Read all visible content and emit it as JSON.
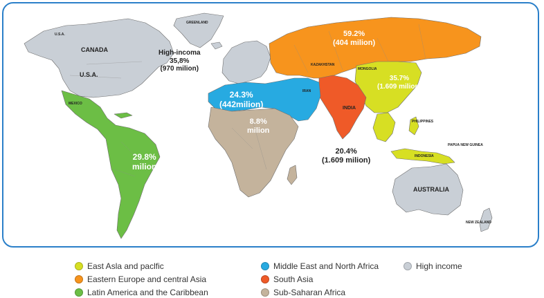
{
  "colors": {
    "east_asia_pacific": "#d7df23",
    "eastern_europe_central_asia": "#f7941d",
    "latin_america_caribbean": "#6cbe45",
    "middle_east_north_africa": "#27aae1",
    "south_asia": "#ef5a28",
    "sub_saharan_africa": "#c4b39c",
    "high_income": "#c9cfd6",
    "border": "#2a7fc9"
  },
  "countries": {
    "usa_north": "U.S.A.",
    "canada": "CANADA",
    "usa": "U.S.A.",
    "greenland": "GREENLAND",
    "mexico": "MEXICO",
    "kazakhstan": "KAZAKHSTAN",
    "mongolia": "MONGOLIA",
    "iran": "IRAN",
    "india": "INDIA",
    "philippines": "PHILIPPINES",
    "indonesia": "INDONESIA",
    "papua": "PAPUA NEW GUINEA",
    "australia": "AUSTRALIA",
    "new_zealand": "NEW ZEALAND"
  },
  "labels": {
    "high_income": {
      "line1": "High-incoma",
      "line2": "35,8%",
      "line3": "(970 milion)"
    },
    "eastern_europe": {
      "line1": "59.2%",
      "line2": "(404 milion)"
    },
    "east_asia": {
      "line1": "35.7%",
      "line2": "(1.609 milion)"
    },
    "middle_east": {
      "line1": "24.3%",
      "line2": "(442milion)"
    },
    "sub_saharan": {
      "line1": "8.8%",
      "line2": "milion"
    },
    "latin_america": {
      "line1": "29.8%",
      "line2": "milion"
    },
    "south_asia": {
      "line1": "20.4%",
      "line2": "(1.609 milion)"
    }
  },
  "legend": [
    {
      "label": "East Asla and paclfic",
      "color_key": "east_asia_pacific"
    },
    {
      "label": "Eastern Europe and central Asia",
      "color_key": "eastern_europe_central_asia"
    },
    {
      "label": "Latin America and the Caribbean",
      "color_key": "latin_america_caribbean"
    },
    {
      "label": "Middle East and North Africa",
      "color_key": "middle_east_north_africa"
    },
    {
      "label": "South Asia",
      "color_key": "south_asia"
    },
    {
      "label": "Sub-Saharan Africa",
      "color_key": "sub_saharan_africa"
    },
    {
      "label": "High income",
      "color_key": "high_income"
    }
  ]
}
